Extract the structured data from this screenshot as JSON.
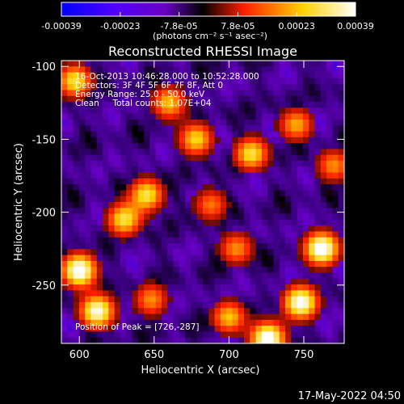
{
  "chart_data": {
    "type": "heatmap",
    "title": "Reconstructed RHESSI Image",
    "xlabel": "Heliocentric X (arcsec)",
    "ylabel": "Heliocentric Y (arcsec)",
    "xlim": [
      588,
      777
    ],
    "ylim": [
      -290,
      -96
    ],
    "xticks": [
      600,
      650,
      700,
      750
    ],
    "yticks": [
      -100,
      -150,
      -200,
      -250
    ],
    "colorbar": {
      "ticks": [
        "-0.00039",
        "-0.00023",
        "-7.8e-05",
        "7.8e-05",
        "0.00023",
        "0.00039"
      ],
      "range": [
        -0.00039,
        0.00039
      ],
      "units_label": "(photons cm⁻² s⁻¹ asec⁻²)"
    },
    "annotations": [
      "16-Oct-2013 10:46:28.000 to 10:52:28.000",
      "Detectors: 3F 4F 5F 6F 7F 8F, Att 0",
      "Energy Range: 25.0 - 50.0 keV",
      "Clean     Total counts: 1.07E+04"
    ],
    "peak_text": "Position of Peak = [726,-287]",
    "grid": false,
    "colormap": [
      "#0000ff",
      "#6a00c8",
      "#3a0080",
      "#000000",
      "#ff1e00",
      "#ffd200",
      "#ffffff"
    ],
    "bright_regions": [
      {
        "x": 600,
        "y": -240,
        "strength": 1.0
      },
      {
        "x": 612,
        "y": -268,
        "strength": 0.9
      },
      {
        "x": 630,
        "y": -205,
        "strength": 0.7
      },
      {
        "x": 645,
        "y": -188,
        "strength": 0.7
      },
      {
        "x": 597,
        "y": -110,
        "strength": 0.7
      },
      {
        "x": 762,
        "y": -225,
        "strength": 1.0
      },
      {
        "x": 748,
        "y": -262,
        "strength": 0.95
      },
      {
        "x": 726,
        "y": -287,
        "strength": 1.0
      },
      {
        "x": 700,
        "y": -272,
        "strength": 0.6
      },
      {
        "x": 715,
        "y": -160,
        "strength": 0.7
      },
      {
        "x": 678,
        "y": -150,
        "strength": 0.65
      },
      {
        "x": 660,
        "y": -125,
        "strength": 0.6
      },
      {
        "x": 745,
        "y": -140,
        "strength": 0.55
      },
      {
        "x": 705,
        "y": -225,
        "strength": 0.5
      },
      {
        "x": 648,
        "y": -260,
        "strength": 0.5
      },
      {
        "x": 770,
        "y": -168,
        "strength": 0.5
      },
      {
        "x": 688,
        "y": -195,
        "strength": 0.45
      }
    ]
  },
  "footer": {
    "timestamp": "17-May-2022 04:50"
  }
}
